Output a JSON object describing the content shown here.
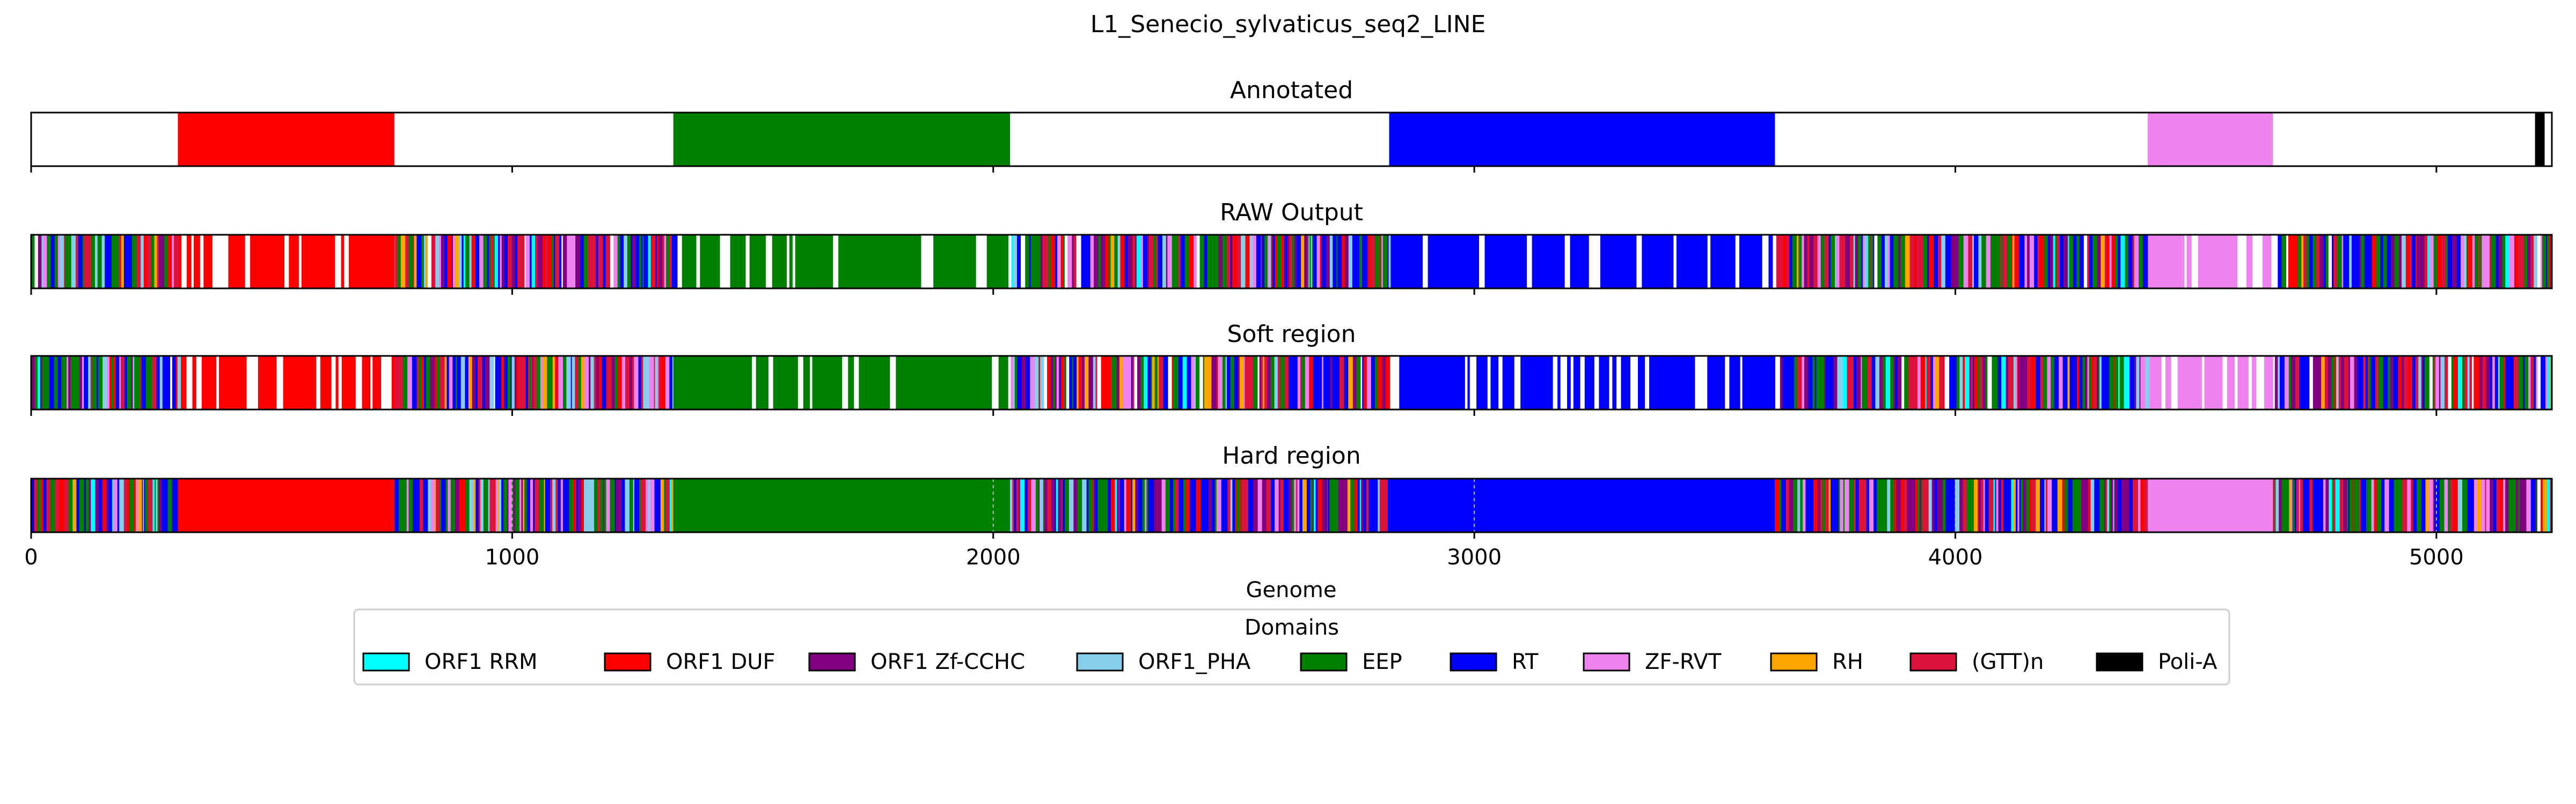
{
  "chart_data": {
    "type": "bar",
    "title": "L1_Senecio_sylvaticus_seq2_LINE",
    "xlabel": "Genome",
    "xlim": [
      0,
      5240
    ],
    "xticks": [
      0,
      1000,
      2000,
      3000,
      4000,
      5000
    ],
    "xtick_labels": [
      "0",
      "1000",
      "2000",
      "3000",
      "4000",
      "5000"
    ],
    "panels": [
      {
        "name": "Annotated",
        "mode": "annotated"
      },
      {
        "name": "RAW Output",
        "mode": "raw"
      },
      {
        "name": "Soft region",
        "mode": "soft"
      },
      {
        "name": "Hard region",
        "mode": "hard"
      }
    ],
    "annotated_segments": [
      {
        "domain": "ORF1 DUF",
        "start": 305,
        "end": 755
      },
      {
        "domain": "EEP",
        "start": 1335,
        "end": 2035
      },
      {
        "domain": "RT",
        "start": 2823,
        "end": 3625
      },
      {
        "domain": "ZF-RVT",
        "start": 4400,
        "end": 4660
      },
      {
        "domain": "Poli-A",
        "start": 5205,
        "end": 5225
      }
    ],
    "hard_region_dashed_marks": [
      1000,
      2000,
      3000,
      4000,
      5000
    ],
    "legend": {
      "title": "Domains",
      "placement": "below",
      "items": [
        {
          "label": "ORF1 RRM",
          "color": "#00ffff"
        },
        {
          "label": "ORF1 DUF",
          "color": "#ff0000"
        },
        {
          "label": "ORF1 Zf-CCHC",
          "color": "#800080"
        },
        {
          "label": "ORF1_PHA",
          "color": "#87ceeb"
        },
        {
          "label": "EEP",
          "color": "#008000"
        },
        {
          "label": "RT",
          "color": "#0000ff"
        },
        {
          "label": "ZF-RVT",
          "color": "#ee82ee"
        },
        {
          "label": "RH",
          "color": "#ffa500"
        },
        {
          "label": "(GTT)n",
          "color": "#dc143c"
        },
        {
          "label": "Poli-A",
          "color": "#000000"
        }
      ]
    }
  }
}
